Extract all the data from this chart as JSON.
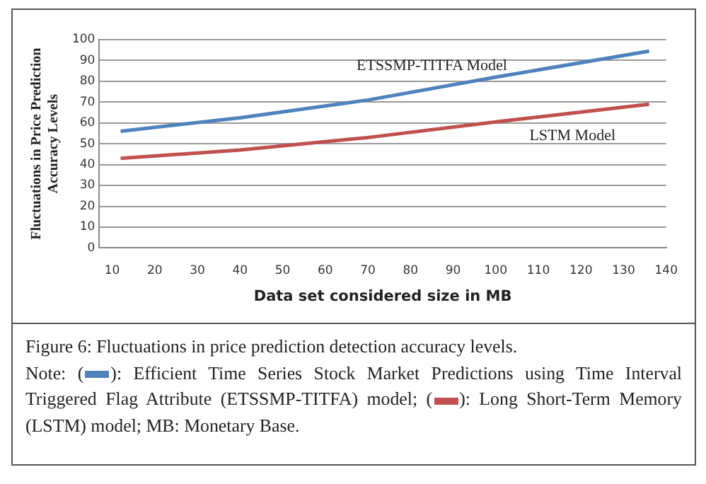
{
  "chart_data": {
    "type": "line",
    "title": "Figure 6: Fluctuations in price prediction detection accuracy levels.",
    "xlabel": "Data set considered size in MB",
    "ylabel": "Fluctuations in Price Prediction Accuracy Levels",
    "xlim": [
      7,
      140
    ],
    "xticks": [
      10,
      20,
      30,
      40,
      50,
      60,
      70,
      80,
      90,
      100,
      110,
      120,
      130,
      140
    ],
    "ylim": [
      0,
      100
    ],
    "yticks": [
      0,
      10,
      20,
      30,
      40,
      50,
      60,
      70,
      80,
      90,
      100
    ],
    "grid": "y",
    "legend": false,
    "marker": "none",
    "line_style": "solid",
    "series": [
      {
        "name": "ETSSMP-TITFA Model",
        "color": "#4f81bd",
        "x": [
          12,
          40,
          70,
          100,
          136
        ],
        "values": [
          56,
          62.5,
          71,
          82,
          94.5
        ]
      },
      {
        "name": "LSTM Model",
        "color": "#c0504d",
        "x": [
          12,
          40,
          70,
          100,
          136
        ],
        "values": [
          43,
          47,
          53,
          60.5,
          69
        ]
      }
    ],
    "annotations": [
      "Note: (",
      "): Efficient Time Series Stock Market Predictions using Time Interval Triggered Flag Attribute (ETSSMP-TITFA) model; (",
      "): Long Short-Term Memory (LSTM) model; MB: Monetary Base."
    ]
  }
}
